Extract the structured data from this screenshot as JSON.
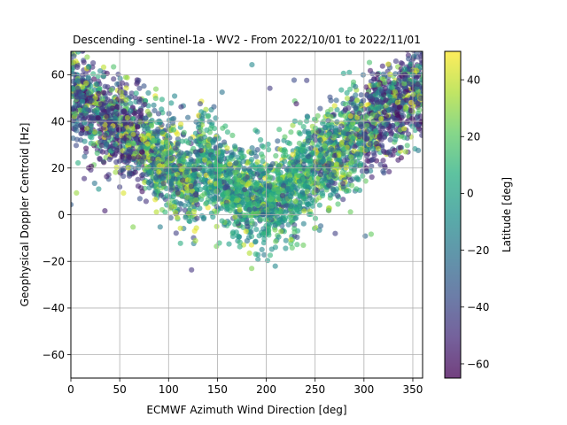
{
  "chart_data": {
    "type": "scatter",
    "title": "Descending - sentinel-1a - WV2 - From 2022/10/01 to 2022/11/01",
    "xlabel": "ECMWF Azimuth Wind Direction [deg]",
    "ylabel": "Geophysical Doppler Centroid [Hz]",
    "xlim": [
      0,
      360
    ],
    "ylim": [
      -70,
      70
    ],
    "xticks": [
      0,
      50,
      100,
      150,
      200,
      250,
      300,
      350
    ],
    "yticks": [
      -60,
      -40,
      -20,
      0,
      20,
      40,
      60
    ],
    "grid": true,
    "colorbar": {
      "label": "Latitude [deg]",
      "range": [
        -65,
        50
      ],
      "ticks": [
        -60,
        -40,
        -20,
        0,
        20,
        40
      ],
      "colormap": "viridis"
    },
    "marker_alpha": 0.6,
    "point_summary": [
      {
        "azimuth_range": [
          0,
          60
        ],
        "doppler_range": [
          25,
          70
        ],
        "latitude": "mostly -60 to -30 (purple)"
      },
      {
        "azimuth_range": [
          60,
          130
        ],
        "doppler_range": [
          5,
          45
        ],
        "latitude": "mixed -40 to 50"
      },
      {
        "azimuth_range": [
          130,
          250
        ],
        "doppler_range": [
          -28,
          40
        ],
        "latitude": "mostly -10 to 20 (teal/green)"
      },
      {
        "azimuth_range": [
          250,
          300
        ],
        "doppler_range": [
          5,
          60
        ],
        "latitude": "mixed -30 to 50"
      },
      {
        "azimuth_range": [
          300,
          360
        ],
        "doppler_range": [
          25,
          70
        ],
        "latitude": "mostly -60 to -30 (purple)"
      }
    ]
  }
}
